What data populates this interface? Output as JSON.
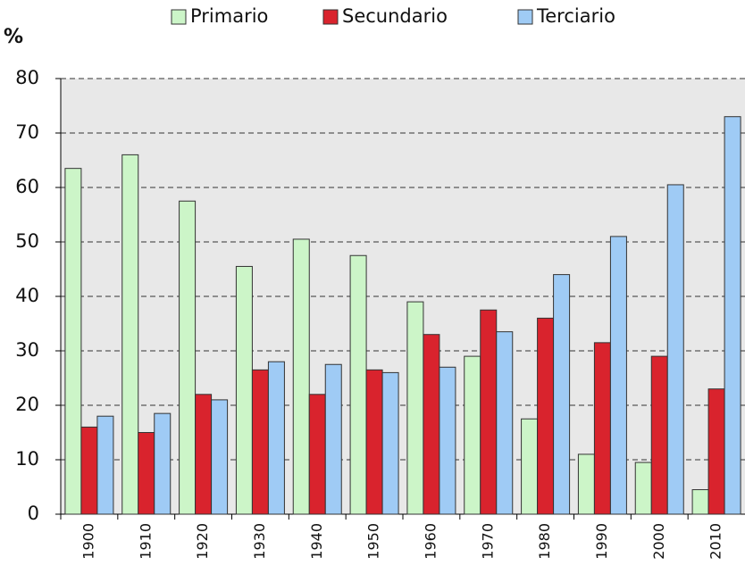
{
  "chart_data": {
    "type": "bar",
    "y_label": "%",
    "categories": [
      "1900",
      "1910",
      "1920",
      "1930",
      "1940",
      "1950",
      "1960",
      "1970",
      "1980",
      "1990",
      "2000",
      "2010"
    ],
    "series": [
      {
        "name": "Primario",
        "color": "#ccf5c8",
        "values": [
          63.5,
          66,
          57.5,
          45.5,
          50.5,
          47.5,
          39,
          29,
          17.5,
          11,
          9.5,
          4.5
        ]
      },
      {
        "name": "Secundario",
        "color": "#d9232d",
        "values": [
          16,
          15,
          22,
          26.5,
          22,
          26.5,
          33,
          37.5,
          36,
          31.5,
          29,
          23
        ]
      },
      {
        "name": "Terciario",
        "color": "#9fcbf5",
        "values": [
          18,
          18.5,
          21,
          28,
          27.5,
          26,
          27,
          33.5,
          44,
          51,
          60.5,
          73
        ]
      }
    ],
    "ylim": [
      0,
      80
    ],
    "yticks": [
      0,
      10,
      20,
      30,
      40,
      50,
      60,
      70,
      80
    ],
    "grid": true,
    "legend": "top"
  }
}
